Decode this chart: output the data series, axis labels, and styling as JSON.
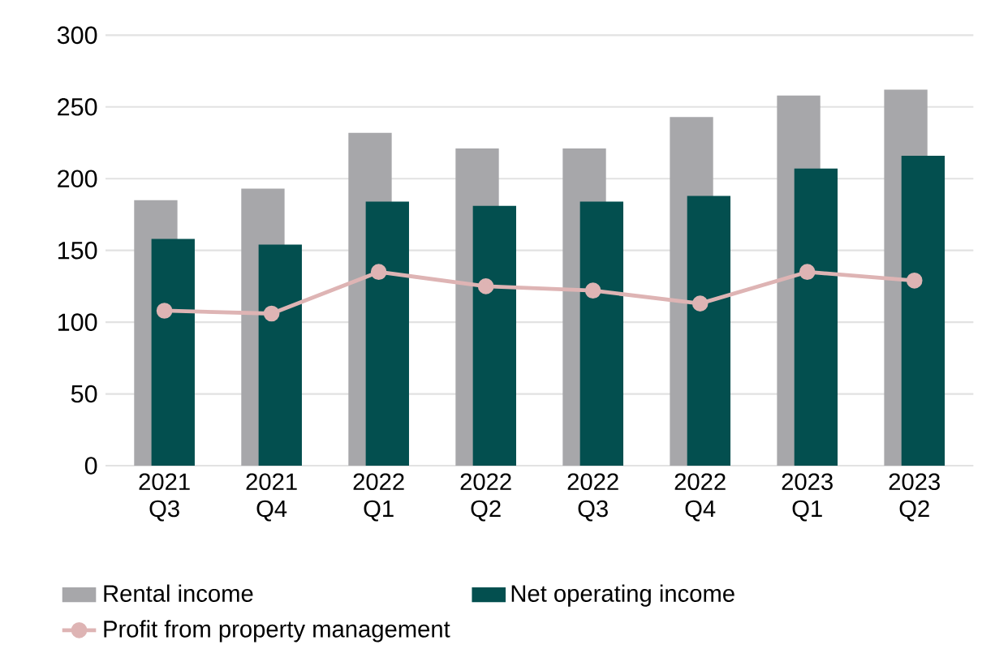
{
  "chart_data": {
    "type": "bar",
    "categories": [
      "2021 Q3",
      "2021 Q4",
      "2022 Q1",
      "2022 Q2",
      "2022 Q3",
      "2022 Q4",
      "2023 Q1",
      "2023 Q2"
    ],
    "series": [
      {
        "name": "Rental income",
        "color": "#a7a7aa",
        "values": [
          185,
          193,
          232,
          221,
          221,
          243,
          258,
          262
        ]
      },
      {
        "name": "Net operating income",
        "color": "#034f4f",
        "values": [
          158,
          154,
          184,
          181,
          184,
          188,
          207,
          216
        ]
      },
      {
        "name": "Profit from property management",
        "type": "line",
        "color": "#deb4b4",
        "values": [
          108,
          106,
          135,
          125,
          122,
          113,
          135,
          129
        ]
      }
    ],
    "ylim": [
      0,
      300
    ],
    "yticks": [
      0,
      50,
      100,
      150,
      200,
      250,
      300
    ],
    "grid": "y",
    "legend": "bottom",
    "marker": "circle",
    "line_style": "solid"
  }
}
